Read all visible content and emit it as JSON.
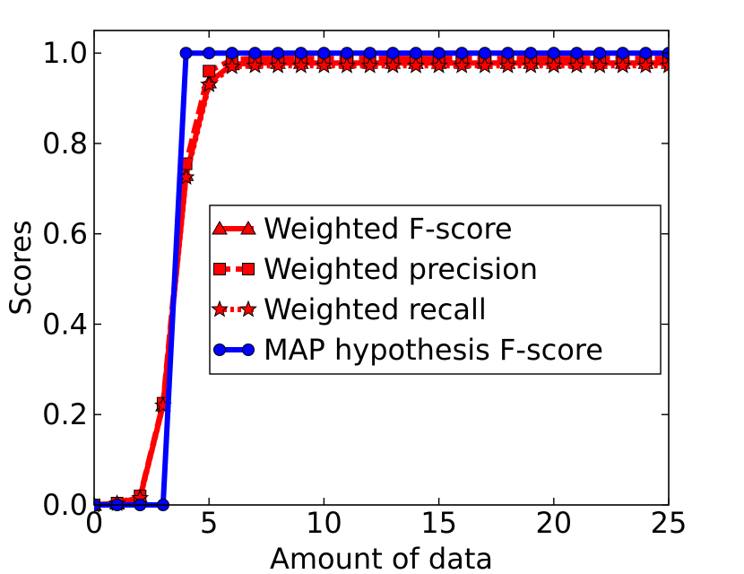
{
  "chart_data": {
    "type": "line",
    "title": "",
    "xlabel": "Amount of data",
    "ylabel": "Scores",
    "xlim": [
      0,
      25
    ],
    "ylim": [
      0.0,
      1.05
    ],
    "grid": false,
    "legend_position": "center-right",
    "x_ticks": [
      0,
      5,
      10,
      15,
      20,
      25
    ],
    "x_tick_labels": [
      "0",
      "5",
      "10",
      "15",
      "20",
      "25"
    ],
    "y_ticks": [
      0.0,
      0.2,
      0.4,
      0.6,
      0.8,
      1.0
    ],
    "y_tick_labels": [
      "0.0",
      "0.2",
      "0.4",
      "0.6",
      "0.8",
      "1.0"
    ],
    "x": [
      0,
      1,
      2,
      3,
      4,
      5,
      6,
      7,
      8,
      9,
      10,
      11,
      12,
      13,
      14,
      15,
      16,
      17,
      18,
      19,
      20,
      21,
      22,
      23,
      24,
      25
    ],
    "series": [
      {
        "name": "Weighted F-score",
        "color": "#ff0000",
        "marker": "triangle",
        "linestyle": "solid",
        "values": [
          0.0,
          0.003,
          0.017,
          0.22,
          0.73,
          0.935,
          0.975,
          0.978,
          0.978,
          0.978,
          0.978,
          0.978,
          0.978,
          0.978,
          0.978,
          0.978,
          0.978,
          0.978,
          0.978,
          0.978,
          0.978,
          0.978,
          0.978,
          0.978,
          0.978,
          0.978
        ]
      },
      {
        "name": "Weighted precision",
        "color": "#ff0000",
        "marker": "square",
        "linestyle": "dashed",
        "values": [
          0.0,
          0.004,
          0.02,
          0.225,
          0.755,
          0.96,
          0.985,
          0.988,
          0.988,
          0.988,
          0.988,
          0.988,
          0.988,
          0.988,
          0.988,
          0.988,
          0.988,
          0.988,
          0.988,
          0.988,
          0.988,
          0.988,
          0.988,
          0.988,
          0.988,
          0.988
        ]
      },
      {
        "name": "Weighted recall",
        "color": "#ff0000",
        "marker": "star",
        "linestyle": "dotted",
        "values": [
          0.0,
          0.003,
          0.015,
          0.22,
          0.725,
          0.93,
          0.97,
          0.972,
          0.972,
          0.972,
          0.972,
          0.972,
          0.972,
          0.972,
          0.972,
          0.972,
          0.972,
          0.972,
          0.972,
          0.972,
          0.972,
          0.972,
          0.972,
          0.972,
          0.972,
          0.972
        ]
      },
      {
        "name": "MAP hypothesis F-score",
        "color": "#0000ff",
        "marker": "circle",
        "linestyle": "solid",
        "values": [
          0.0,
          0.0,
          0.0,
          0.0,
          1.0,
          1.0,
          1.0,
          1.0,
          1.0,
          1.0,
          1.0,
          1.0,
          1.0,
          1.0,
          1.0,
          1.0,
          1.0,
          1.0,
          1.0,
          1.0,
          1.0,
          1.0,
          1.0,
          1.0,
          1.0,
          1.0
        ]
      }
    ]
  }
}
